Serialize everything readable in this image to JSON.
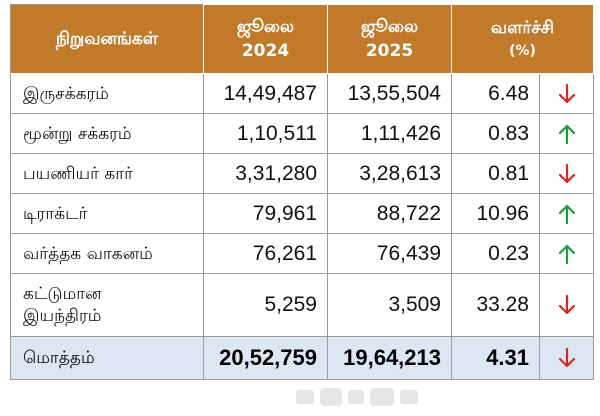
{
  "header": {
    "col_company": "நிறுவனங்கள்",
    "col_2024_line1": "ஜூலை",
    "col_2024_line2": "2024",
    "col_2025_line1": "ஜூலை",
    "col_2025_line2": "2025",
    "col_growth_line1": "வளர்ச்சி",
    "col_growth_line2": "(%)"
  },
  "rows": [
    {
      "name": "இருசக்கரம்",
      "v2024": "14,49,487",
      "v2025": "13,55,504",
      "growth": "6.48",
      "trend": "down"
    },
    {
      "name": "மூன்று சக்கரம்",
      "v2024": "1,10,511",
      "v2025": "1,11,426",
      "growth": "0.83",
      "trend": "up"
    },
    {
      "name": "பயணியர் கார்",
      "v2024": "3,31,280",
      "v2025": "3,28,613",
      "growth": "0.81",
      "trend": "down"
    },
    {
      "name": "டிராக்டர்",
      "v2024": "79,961",
      "v2025": "88,722",
      "growth": "10.96",
      "trend": "up"
    },
    {
      "name": "வர்த்தக வாகனம்",
      "v2024": "76,261",
      "v2025": "76,439",
      "growth": "0.23",
      "trend": "up"
    },
    {
      "name_line1": "கட்டுமான",
      "name_line2": "இயந்திரம்",
      "v2024": "5,259",
      "v2025": "3,509",
      "growth": "33.28",
      "trend": "down"
    }
  ],
  "total": {
    "name": "மொத்தம்",
    "v2024": "20,52,759",
    "v2025": "19,64,213",
    "growth": "4.31",
    "trend": "down"
  },
  "colors": {
    "header_bg": "#c07a2a",
    "total_bg": "#dde7f2",
    "up": "#1e9b3a",
    "down": "#d8261f"
  },
  "icons": {
    "up": "arrow-up-icon",
    "down": "arrow-down-icon"
  },
  "watermark": "தினமலர்"
}
